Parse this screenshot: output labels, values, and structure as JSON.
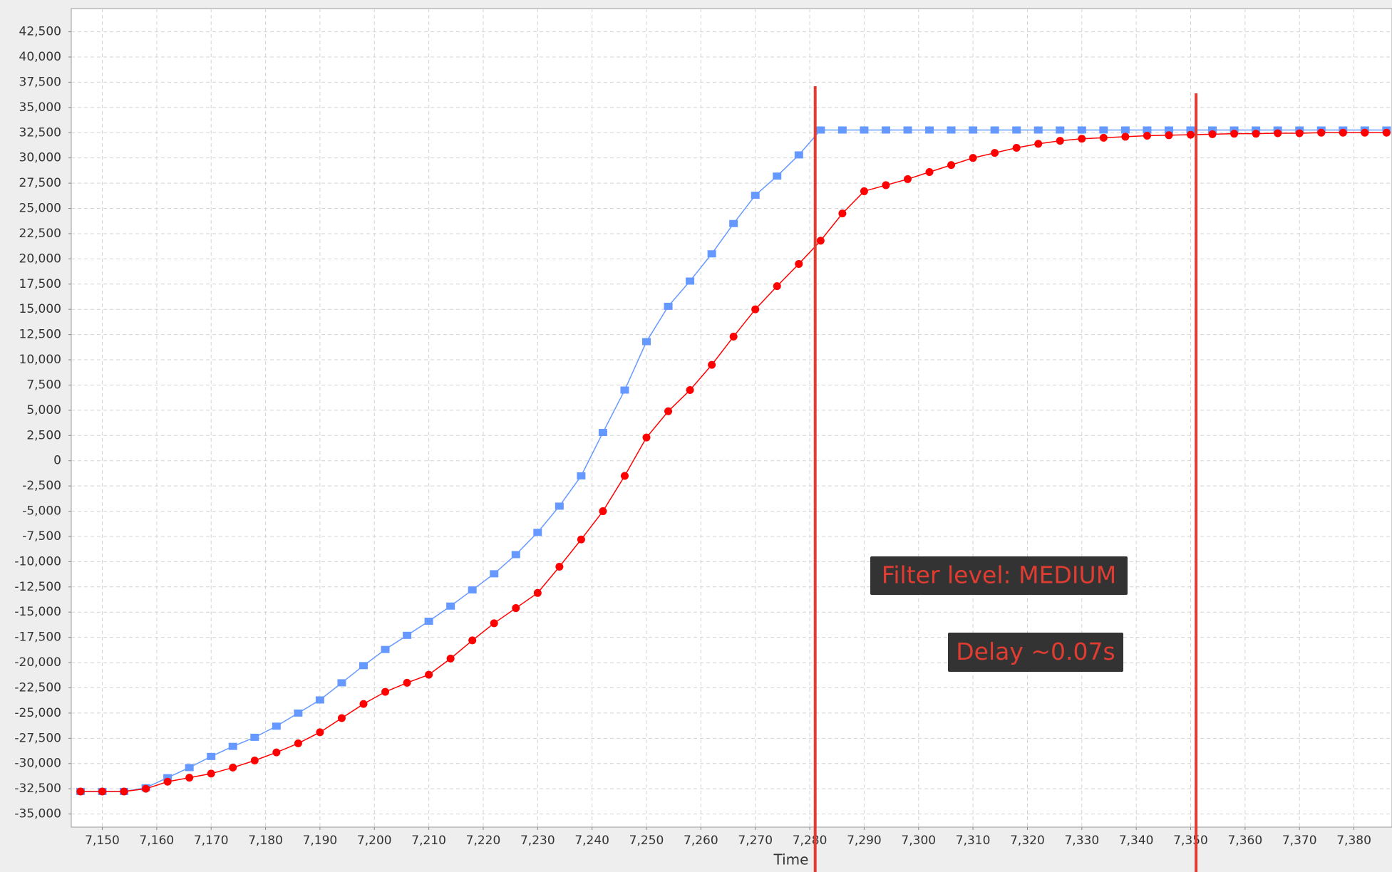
{
  "chart_data": {
    "type": "line",
    "x_label": "Time",
    "x": [
      7146,
      7150,
      7154,
      7158,
      7162,
      7166,
      7170,
      7174,
      7178,
      7182,
      7186,
      7190,
      7194,
      7198,
      7202,
      7206,
      7210,
      7214,
      7218,
      7222,
      7226,
      7230,
      7234,
      7238,
      7242,
      7246,
      7250,
      7254,
      7258,
      7262,
      7266,
      7270,
      7274,
      7278,
      7282,
      7286,
      7290,
      7294,
      7298,
      7302,
      7306,
      7310,
      7314,
      7318,
      7322,
      7326,
      7330,
      7334,
      7338,
      7342,
      7346,
      7350,
      7354,
      7358,
      7362,
      7366,
      7370,
      7374,
      7378,
      7382,
      7386
    ],
    "series": [
      {
        "color": "#6699ff",
        "marker": "square",
        "values": [
          -32768,
          -32768,
          -32768,
          -32400,
          -31400,
          -30400,
          -29300,
          -28300,
          -27400,
          -26300,
          -25000,
          -23700,
          -22000,
          -20300,
          -18700,
          -17300,
          -15900,
          -14400,
          -12800,
          -11200,
          -9300,
          -7100,
          -4500,
          -1500,
          2800,
          7000,
          11800,
          15300,
          17800,
          20500,
          23500,
          26300,
          28200,
          30300,
          32767,
          32767,
          32767,
          32767,
          32767,
          32767,
          32767,
          32767,
          32767,
          32767,
          32767,
          32767,
          32767,
          32767,
          32767,
          32767,
          32767,
          32767,
          32767,
          32767,
          32767,
          32767,
          32767,
          32767,
          32767,
          32767,
          32767
        ]
      },
      {
        "color": "#ff0000",
        "marker": "circle",
        "values": [
          -32768,
          -32768,
          -32768,
          -32500,
          -31800,
          -31400,
          -31000,
          -30400,
          -29700,
          -28900,
          -28000,
          -26900,
          -25500,
          -24100,
          -22900,
          -22000,
          -21200,
          -19600,
          -17800,
          -16100,
          -14600,
          -13100,
          -10500,
          -7800,
          -5000,
          -1500,
          2300,
          4900,
          7000,
          9500,
          12300,
          15000,
          17300,
          19500,
          21800,
          24500,
          26700,
          27300,
          27900,
          28600,
          29300,
          30000,
          30500,
          31000,
          31400,
          31700,
          31900,
          32000,
          32100,
          32200,
          32250,
          32300,
          32350,
          32400,
          32400,
          32450,
          32450,
          32500,
          32500,
          32500,
          32500
        ]
      }
    ],
    "vlines": [
      7281,
      7351
    ],
    "vline_color": "#e03c31",
    "annotations": [
      "Filter level: MEDIUM",
      "Delay ~0.07s"
    ],
    "xlim": [
      7144.3,
      7387
    ],
    "ylim": [
      -36300,
      44800
    ],
    "grid": true,
    "xticks": [
      {
        "value": 7150,
        "label": "7,150"
      },
      {
        "value": 7160,
        "label": "7,160"
      },
      {
        "value": 7170,
        "label": "7,170"
      },
      {
        "value": 7180,
        "label": "7,180"
      },
      {
        "value": 7190,
        "label": "7,190"
      },
      {
        "value": 7200,
        "label": "7,200"
      },
      {
        "value": 7210,
        "label": "7,210"
      },
      {
        "value": 7220,
        "label": "7,220"
      },
      {
        "value": 7230,
        "label": "7,230"
      },
      {
        "value": 7240,
        "label": "7,240"
      },
      {
        "value": 7250,
        "label": "7,250"
      },
      {
        "value": 7260,
        "label": "7,260"
      },
      {
        "value": 7270,
        "label": "7,270"
      },
      {
        "value": 7280,
        "label": "7,280"
      },
      {
        "value": 7290,
        "label": "7,290"
      },
      {
        "value": 7300,
        "label": "7,300"
      },
      {
        "value": 7310,
        "label": "7,310"
      },
      {
        "value": 7320,
        "label": "7,320"
      },
      {
        "value": 7330,
        "label": "7,330"
      },
      {
        "value": 7340,
        "label": "7,340"
      },
      {
        "value": 7350,
        "label": "7,350"
      },
      {
        "value": 7360,
        "label": "7,360"
      },
      {
        "value": 7370,
        "label": "7,370"
      },
      {
        "value": 7380,
        "label": "7,380"
      }
    ],
    "yticks": [
      {
        "value": -35000,
        "label": "-35,000"
      },
      {
        "value": -32500,
        "label": "-32,500"
      },
      {
        "value": -30000,
        "label": "-30,000"
      },
      {
        "value": -27500,
        "label": "-27,500"
      },
      {
        "value": -25000,
        "label": "-25,000"
      },
      {
        "value": -22500,
        "label": "-22,500"
      },
      {
        "value": -20000,
        "label": "-20,000"
      },
      {
        "value": -17500,
        "label": "-17,500"
      },
      {
        "value": -15000,
        "label": "-15,000"
      },
      {
        "value": -12500,
        "label": "-12,500"
      },
      {
        "value": -10000,
        "label": "-10,000"
      },
      {
        "value": -7500,
        "label": "-7,500"
      },
      {
        "value": -5000,
        "label": "-5,000"
      },
      {
        "value": -2500,
        "label": "-2,500"
      },
      0,
      {
        "value": 2500,
        "label": "2,500"
      },
      {
        "value": 5000,
        "label": "5,000"
      },
      {
        "value": 7500,
        "label": "7,500"
      },
      {
        "value": 10000,
        "label": "10,000"
      },
      {
        "value": 12500,
        "label": "12,500"
      },
      {
        "value": 15000,
        "label": "15,000"
      },
      {
        "value": 17500,
        "label": "17,500"
      },
      {
        "value": 20000,
        "label": "20,000"
      },
      {
        "value": 22500,
        "label": "22,500"
      },
      {
        "value": 25000,
        "label": "25,000"
      },
      {
        "value": 27500,
        "label": "27,500"
      },
      {
        "value": 30000,
        "label": "30,000"
      },
      {
        "value": 32500,
        "label": "32,500"
      },
      {
        "value": 35000,
        "label": "35,000"
      },
      {
        "value": 37500,
        "label": "37,500"
      },
      {
        "value": 40000,
        "label": "40,000"
      },
      {
        "value": 42500,
        "label": "42,500"
      }
    ]
  }
}
